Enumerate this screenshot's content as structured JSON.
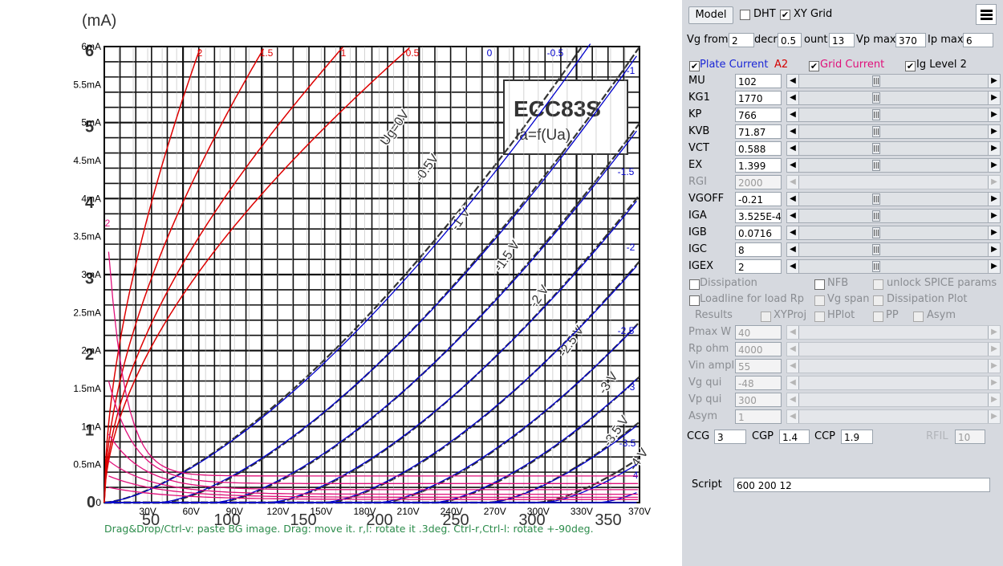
{
  "graph": {
    "units_label": "(mA)",
    "bg_y_ticks": [
      "6",
      "5",
      "4",
      "3",
      "2",
      "1",
      "0"
    ],
    "bg_x_ticks": [
      "50",
      "100",
      "150",
      "200",
      "250",
      "300",
      "350"
    ],
    "y_ticks": [
      "0",
      "0.5mA",
      "1mA",
      "1.5mA",
      "2mA",
      "2.5mA",
      "3mA",
      "3.5mA",
      "4mA",
      "4.5mA",
      "5mA",
      "5.5mA",
      "6mA"
    ],
    "x_ticks": [
      "30V",
      "60V",
      "90V",
      "120V",
      "150V",
      "180V",
      "210V",
      "240V",
      "270V",
      "300V",
      "330V",
      "370V"
    ],
    "hint": "Drag&Drop/Ctrl-v: paste BG image. Drag: move it. r,l: rotate it .3deg. Ctrl-r,Ctrl-l: rotate +-90deg.",
    "datasheet_title": "ECC83S",
    "datasheet_subtitle": "Ia=f(Ua)",
    "ug_labels": [
      "Ug=0V",
      "-0.5V",
      "-1 V",
      "-1.5 V",
      "-2 V",
      "-2.5 V",
      "-3 V",
      "-3.5 V",
      "-4 V"
    ],
    "grid_labels": [
      "2",
      "1.5",
      "1",
      "0.5"
    ],
    "plate_labels": [
      "0",
      "-0.5",
      "-1",
      "-1.5",
      "-2",
      "-2.5",
      "-3",
      "-3.5",
      "-4"
    ],
    "grid_curve_label": "2",
    "colors": {
      "plate": "#0000cc",
      "grid": "#dd0000",
      "grid_current": "#e0107a",
      "datasheet": "#333333"
    }
  },
  "panel": {
    "model_button": "Model",
    "dht_label": "DHT",
    "xygrid_label": "XY Grid",
    "menu_icon": "hamburger-menu-icon",
    "vg_from_label": "Vg from",
    "vg_from_value": "2",
    "decr_label": "decr",
    "decr_value": "0.5",
    "count_label": "ount",
    "count_value": "13",
    "vpmax_label": "Vp max",
    "vpmax_value": "370",
    "ipmax_label": "Ip max",
    "ipmax_value": "6",
    "plate_current_label": "Plate Current",
    "a2_label": "A2",
    "grid_current_label": "Grid Current",
    "ig_level_label": "Ig Level 2",
    "params": [
      {
        "name": "MU",
        "value": "102",
        "disabled": false
      },
      {
        "name": "KG1",
        "value": "1770",
        "disabled": false
      },
      {
        "name": "KP",
        "value": "766",
        "disabled": false
      },
      {
        "name": "KVB",
        "value": "71.87",
        "disabled": false
      },
      {
        "name": "VCT",
        "value": "0.588",
        "disabled": false
      },
      {
        "name": "EX",
        "value": "1.399",
        "disabled": false
      },
      {
        "name": "RGI",
        "value": "2000",
        "disabled": true
      },
      {
        "name": "VGOFF",
        "value": "-0.21",
        "disabled": false
      },
      {
        "name": "IGA",
        "value": "3.525E-4",
        "disabled": false
      },
      {
        "name": "IGB",
        "value": "0.0716",
        "disabled": false
      },
      {
        "name": "IGC",
        "value": "8",
        "disabled": false
      },
      {
        "name": "IGEX",
        "value": "2",
        "disabled": false
      }
    ],
    "dissipation_label": "Dissipation",
    "nfb_label": "NFB",
    "unlock_spice_label": "unlock SPICE params",
    "loadline_label": "Loadline for load Rp",
    "vg_span_label": "Vg span",
    "dissipation_plot_label": "Dissipation Plot",
    "results_label": "Results",
    "xyproj_label": "XYProj",
    "hplot_label": "HPlot",
    "pp_label": "PP",
    "asym_check_label": "Asym",
    "load_params": [
      {
        "name": "Pmax W",
        "value": "40"
      },
      {
        "name": "Rp ohm",
        "value": "4000"
      },
      {
        "name": "Vin ampl",
        "value": "55"
      },
      {
        "name": "Vg qui",
        "value": "-48"
      },
      {
        "name": "Vp qui",
        "value": "300"
      },
      {
        "name": "Asym",
        "value": "1"
      }
    ],
    "ccg_label": "CCG",
    "ccg_value": "3",
    "cgp_label": "CGP",
    "cgp_value": "1.4",
    "ccp_label": "CCP",
    "ccp_value": "1.9",
    "rfil_label": "RFIL",
    "rfil_value": "10",
    "script_label": "Script",
    "script_value": "600 200 12"
  }
}
